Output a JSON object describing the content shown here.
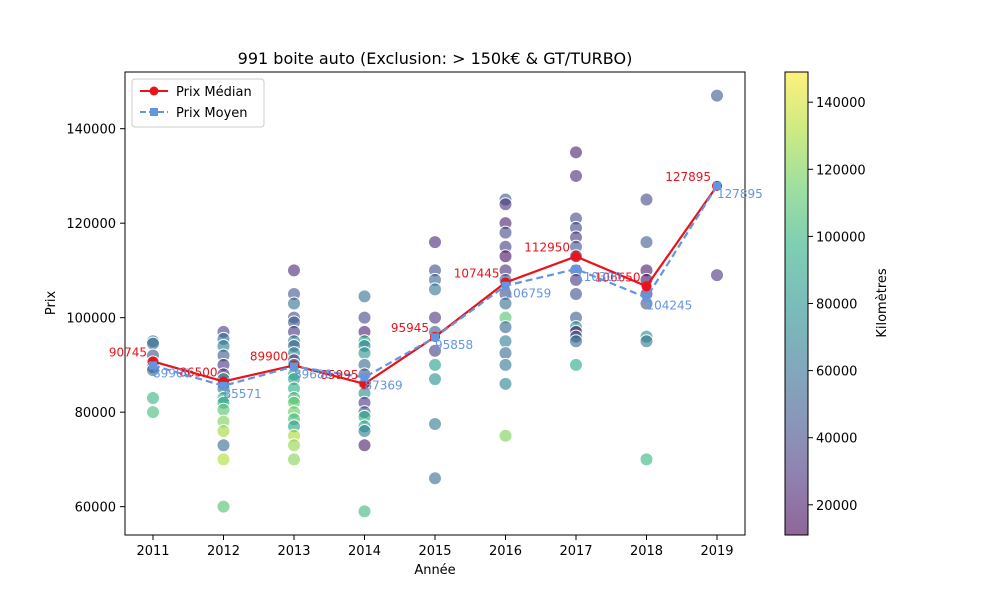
{
  "chart_data": {
    "type": "scatter",
    "title": "991 boite auto (Exclusion: > 150k€ & GT/TURBO)",
    "xlabel": "Année",
    "ylabel": "Prix",
    "categories": [
      "2011",
      "2012",
      "2013",
      "2014",
      "2015",
      "2016",
      "2017",
      "2018",
      "2019"
    ],
    "ylim": [
      54000,
      152000
    ],
    "yticks": [
      60000,
      80000,
      100000,
      120000,
      140000
    ],
    "colorbar": {
      "label": "Kilomètres",
      "range": [
        11000,
        149000
      ],
      "ticks": [
        20000,
        40000,
        60000,
        80000,
        100000,
        120000,
        140000
      ],
      "colormap": "viridis"
    },
    "legend": {
      "position": "top-left",
      "entries": [
        "Prix Médian",
        "Prix Moyen"
      ]
    },
    "series": [
      {
        "name": "Prix Médian",
        "color": "#e8131b",
        "style": "solid",
        "marker": "circle",
        "values": [
          90745,
          86500,
          89900,
          85995,
          95945,
          107445,
          112950,
          106650,
          127895
        ],
        "labels": [
          "90745",
          "86500",
          "89900",
          "85995",
          "95945",
          "107445",
          "112950",
          "106650",
          "127895"
        ]
      },
      {
        "name": "Prix Moyen",
        "color": "#6495e1",
        "style": "dashed",
        "marker": "square",
        "values": [
          89900,
          85571,
          89680,
          87369,
          95858,
          106759,
          110300,
          104245,
          127895
        ],
        "labels": [
          "89900",
          "85571",
          "89680",
          "87369",
          "95858",
          "106759",
          "110300",
          "104245",
          "127895"
        ]
      }
    ],
    "points": [
      {
        "x": "2011",
        "y": 95000,
        "km": 62000
      },
      {
        "x": "2011",
        "y": 94500,
        "km": 55000
      },
      {
        "x": "2011",
        "y": 92000,
        "km": 45000
      },
      {
        "x": "2011",
        "y": 90500,
        "km": 70000
      },
      {
        "x": "2011",
        "y": 89500,
        "km": 40000
      },
      {
        "x": "2011",
        "y": 88900,
        "km": 60000
      },
      {
        "x": "2011",
        "y": 83000,
        "km": 100000
      },
      {
        "x": "2011",
        "y": 80000,
        "km": 105000
      },
      {
        "x": "2012",
        "y": 97000,
        "km": 35000
      },
      {
        "x": "2012",
        "y": 95500,
        "km": 58000
      },
      {
        "x": "2012",
        "y": 94000,
        "km": 66000
      },
      {
        "x": "2012",
        "y": 92000,
        "km": 48000
      },
      {
        "x": "2012",
        "y": 90000,
        "km": 30000
      },
      {
        "x": "2012",
        "y": 88000,
        "km": 25000
      },
      {
        "x": "2012",
        "y": 87000,
        "km": 82000
      },
      {
        "x": "2012",
        "y": 86000,
        "km": 50000
      },
      {
        "x": "2012",
        "y": 85000,
        "km": 62000
      },
      {
        "x": "2012",
        "y": 83000,
        "km": 95000
      },
      {
        "x": "2012",
        "y": 82000,
        "km": 90000
      },
      {
        "x": "2012",
        "y": 80500,
        "km": 110000
      },
      {
        "x": "2012",
        "y": 78000,
        "km": 120000
      },
      {
        "x": "2012",
        "y": 76000,
        "km": 128000
      },
      {
        "x": "2012",
        "y": 73000,
        "km": 55000
      },
      {
        "x": "2012",
        "y": 70000,
        "km": 132000
      },
      {
        "x": "2012",
        "y": 60000,
        "km": 108000
      },
      {
        "x": "2013",
        "y": 110000,
        "km": 25000
      },
      {
        "x": "2013",
        "y": 105000,
        "km": 45000
      },
      {
        "x": "2013",
        "y": 103000,
        "km": 60000
      },
      {
        "x": "2013",
        "y": 100000,
        "km": 40000
      },
      {
        "x": "2013",
        "y": 99000,
        "km": 52000
      },
      {
        "x": "2013",
        "y": 97000,
        "km": 30000
      },
      {
        "x": "2013",
        "y": 95000,
        "km": 68000
      },
      {
        "x": "2013",
        "y": 94000,
        "km": 55000
      },
      {
        "x": "2013",
        "y": 92500,
        "km": 72000
      },
      {
        "x": "2013",
        "y": 91000,
        "km": 35000
      },
      {
        "x": "2013",
        "y": 90000,
        "km": 78000
      },
      {
        "x": "2013",
        "y": 88000,
        "km": 85000
      },
      {
        "x": "2013",
        "y": 87000,
        "km": 90000
      },
      {
        "x": "2013",
        "y": 85000,
        "km": 95000
      },
      {
        "x": "2013",
        "y": 83000,
        "km": 100000
      },
      {
        "x": "2013",
        "y": 82000,
        "km": 112000
      },
      {
        "x": "2013",
        "y": 80000,
        "km": 115000
      },
      {
        "x": "2013",
        "y": 78500,
        "km": 105000
      },
      {
        "x": "2013",
        "y": 77000,
        "km": 88000
      },
      {
        "x": "2013",
        "y": 75000,
        "km": 130000
      },
      {
        "x": "2013",
        "y": 73000,
        "km": 125000
      },
      {
        "x": "2013",
        "y": 70000,
        "km": 122000
      },
      {
        "x": "2014",
        "y": 104500,
        "km": 60000
      },
      {
        "x": "2014",
        "y": 100000,
        "km": 38000
      },
      {
        "x": "2014",
        "y": 97000,
        "km": 22000
      },
      {
        "x": "2014",
        "y": 95000,
        "km": 92000
      },
      {
        "x": "2014",
        "y": 94000,
        "km": 70000
      },
      {
        "x": "2014",
        "y": 92500,
        "km": 80000
      },
      {
        "x": "2014",
        "y": 90000,
        "km": 55000
      },
      {
        "x": "2014",
        "y": 88000,
        "km": 45000
      },
      {
        "x": "2014",
        "y": 86000,
        "km": 100000
      },
      {
        "x": "2014",
        "y": 84000,
        "km": 75000
      },
      {
        "x": "2014",
        "y": 82000,
        "km": 30000
      },
      {
        "x": "2014",
        "y": 80000,
        "km": 50000
      },
      {
        "x": "2014",
        "y": 79000,
        "km": 95000
      },
      {
        "x": "2014",
        "y": 77000,
        "km": 85000
      },
      {
        "x": "2014",
        "y": 76000,
        "km": 65000
      },
      {
        "x": "2014",
        "y": 73000,
        "km": 20000
      },
      {
        "x": "2014",
        "y": 59000,
        "km": 102000
      },
      {
        "x": "2015",
        "y": 116000,
        "km": 25000
      },
      {
        "x": "2015",
        "y": 110000,
        "km": 42000
      },
      {
        "x": "2015",
        "y": 108000,
        "km": 55000
      },
      {
        "x": "2015",
        "y": 106000,
        "km": 62000
      },
      {
        "x": "2015",
        "y": 100000,
        "km": 30000
      },
      {
        "x": "2015",
        "y": 97000,
        "km": 48000
      },
      {
        "x": "2015",
        "y": 93000,
        "km": 35000
      },
      {
        "x": "2015",
        "y": 90000,
        "km": 85000
      },
      {
        "x": "2015",
        "y": 87000,
        "km": 78000
      },
      {
        "x": "2015",
        "y": 77500,
        "km": 65000
      },
      {
        "x": "2015",
        "y": 66000,
        "km": 58000
      },
      {
        "x": "2016",
        "y": 125000,
        "km": 45000
      },
      {
        "x": "2016",
        "y": 124000,
        "km": 30000
      },
      {
        "x": "2016",
        "y": 120000,
        "km": 22000
      },
      {
        "x": "2016",
        "y": 118000,
        "km": 40000
      },
      {
        "x": "2016",
        "y": 115000,
        "km": 35000
      },
      {
        "x": "2016",
        "y": 113000,
        "km": 15000
      },
      {
        "x": "2016",
        "y": 110000,
        "km": 28000
      },
      {
        "x": "2016",
        "y": 108000,
        "km": 50000
      },
      {
        "x": "2016",
        "y": 105000,
        "km": 42000
      },
      {
        "x": "2016",
        "y": 103000,
        "km": 60000
      },
      {
        "x": "2016",
        "y": 100000,
        "km": 110000
      },
      {
        "x": "2016",
        "y": 98000,
        "km": 55000
      },
      {
        "x": "2016",
        "y": 95000,
        "km": 68000
      },
      {
        "x": "2016",
        "y": 92500,
        "km": 58000
      },
      {
        "x": "2016",
        "y": 90000,
        "km": 62000
      },
      {
        "x": "2016",
        "y": 86000,
        "km": 70000
      },
      {
        "x": "2016",
        "y": 75000,
        "km": 120000
      },
      {
        "x": "2017",
        "y": 135000,
        "km": 22000
      },
      {
        "x": "2017",
        "y": 130000,
        "km": 25000
      },
      {
        "x": "2017",
        "y": 121000,
        "km": 40000
      },
      {
        "x": "2017",
        "y": 119000,
        "km": 38000
      },
      {
        "x": "2017",
        "y": 117000,
        "km": 32000
      },
      {
        "x": "2017",
        "y": 115000,
        "km": 45000
      },
      {
        "x": "2017",
        "y": 113000,
        "km": 28000
      },
      {
        "x": "2017",
        "y": 110000,
        "km": 36000
      },
      {
        "x": "2017",
        "y": 108000,
        "km": 30000
      },
      {
        "x": "2017",
        "y": 105000,
        "km": 42000
      },
      {
        "x": "2017",
        "y": 100000,
        "km": 48000
      },
      {
        "x": "2017",
        "y": 98000,
        "km": 75000
      },
      {
        "x": "2017",
        "y": 97000,
        "km": 15000
      },
      {
        "x": "2017",
        "y": 96000,
        "km": 52000
      },
      {
        "x": "2017",
        "y": 95000,
        "km": 55000
      },
      {
        "x": "2017",
        "y": 90000,
        "km": 92000
      },
      {
        "x": "2018",
        "y": 125000,
        "km": 40000
      },
      {
        "x": "2018",
        "y": 116000,
        "km": 50000
      },
      {
        "x": "2018",
        "y": 110000,
        "km": 20000
      },
      {
        "x": "2018",
        "y": 108000,
        "km": 15000
      },
      {
        "x": "2018",
        "y": 105000,
        "km": 28000
      },
      {
        "x": "2018",
        "y": 103000,
        "km": 45000
      },
      {
        "x": "2018",
        "y": 96000,
        "km": 78000
      },
      {
        "x": "2018",
        "y": 95000,
        "km": 62000
      },
      {
        "x": "2018",
        "y": 70000,
        "km": 100000
      },
      {
        "x": "2019",
        "y": 147000,
        "km": 45000
      },
      {
        "x": "2019",
        "y": 109000,
        "km": 30000
      }
    ]
  }
}
